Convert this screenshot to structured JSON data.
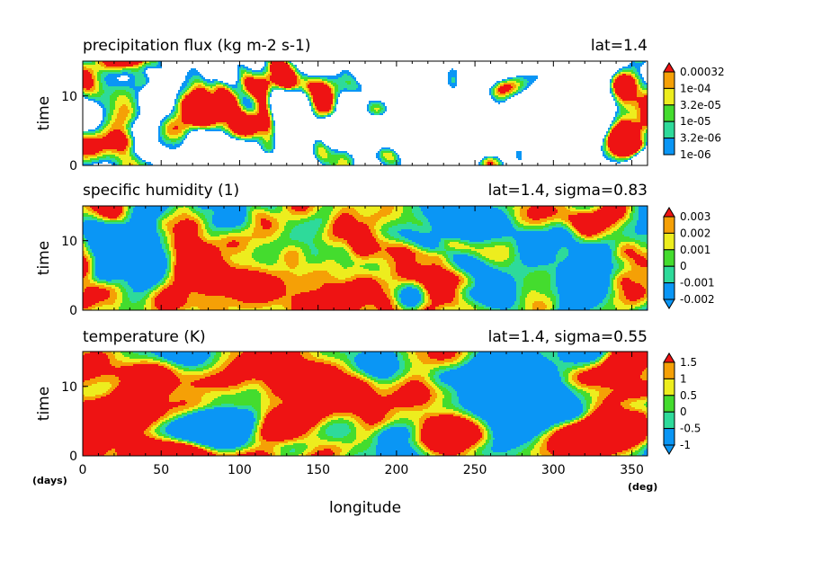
{
  "figure": {
    "xlabel": "longitude",
    "x_unit": "(deg)",
    "ylabel_unit": "(days)"
  },
  "palette": [
    "#0a96f5",
    "#2eda9a",
    "#44dc2e",
    "#eded1e",
    "#f5a006",
    "#ee1313"
  ],
  "chart_data": [
    {
      "type": "heatmap",
      "title": "precipitation flux (kg m-2 s-1)",
      "annotation": "lat=1.4",
      "ylabel": "time",
      "x_range": [
        0,
        360
      ],
      "y_range": [
        0,
        15
      ],
      "x_ticks": [
        "0",
        "50",
        "100",
        "150",
        "200",
        "250",
        "300",
        "350"
      ],
      "y_ticks": [
        "0",
        "10"
      ],
      "colorbar_levels": [
        "1e-06",
        "3.2e-06",
        "1e-05",
        "3.2e-05",
        "1e-04",
        "0.00032"
      ],
      "colorbar_scale": "log",
      "min_color_below_lowest": "#ffffff",
      "pattern": "sparse eastward-propagating precipitation cells; large white areas"
    },
    {
      "type": "heatmap",
      "title": "specific humidity (1)",
      "annotation": "lat=1.4, sigma=0.83",
      "ylabel": "time",
      "x_range": [
        0,
        360
      ],
      "y_range": [
        0,
        15
      ],
      "x_ticks": [
        "0",
        "50",
        "100",
        "150",
        "200",
        "250",
        "300",
        "350"
      ],
      "y_ticks": [
        "0",
        "10"
      ],
      "colorbar_levels": [
        "-0.002",
        "-0.001",
        "0",
        "0.001",
        "0.002",
        "0.003"
      ],
      "colorbar_scale": "linear",
      "pattern": "diagonal bands of moist (red) and dry (blue) anomalies"
    },
    {
      "type": "heatmap",
      "title": "temperature (K)",
      "annotation": "lat=1.4, sigma=0.55",
      "ylabel": "time",
      "x_range": [
        0,
        360
      ],
      "y_range": [
        0,
        15
      ],
      "x_ticks": [
        "0",
        "50",
        "100",
        "150",
        "200",
        "250",
        "300",
        "350"
      ],
      "y_ticks": [
        "0",
        "10"
      ],
      "colorbar_levels": [
        "-1",
        "-0.5",
        "0",
        "0.5",
        "1",
        "1.5"
      ],
      "colorbar_scale": "linear",
      "pattern": "elongated streaks of warm (red) and cool (blue) anomalies"
    }
  ]
}
